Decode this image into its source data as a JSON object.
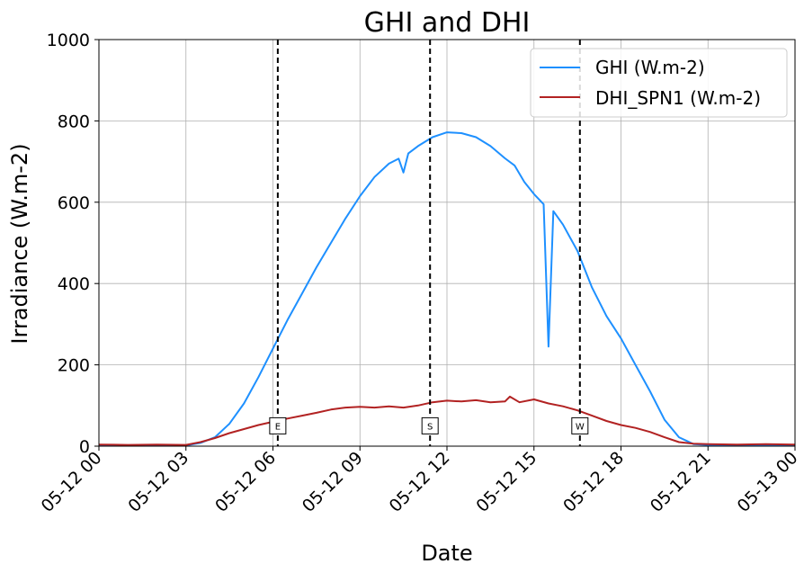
{
  "chart_data": {
    "type": "line",
    "title": "GHI and DHI",
    "xlabel": "Date",
    "ylabel": "Irradiance (W.m-2)",
    "x_ticks": [
      "05-12 00",
      "05-12 03",
      "05-12 06",
      "05-12 09",
      "05-12 12",
      "05-12 15",
      "05-12 18",
      "05-12 21",
      "05-13 00"
    ],
    "y_ticks": [
      "0",
      "200",
      "400",
      "600",
      "800",
      "1000"
    ],
    "xlim": [
      "2023-05-12 00:00",
      "2023-05-13 00:00"
    ],
    "ylim": [
      0,
      1000
    ],
    "grid": true,
    "legend": "top-right",
    "markers": [
      {
        "label": "E",
        "time": "05-12 06:10"
      },
      {
        "label": "S",
        "time": "05-12 11:25"
      },
      {
        "label": "W",
        "time": "05-12 16:35"
      }
    ],
    "series": [
      {
        "name": "GHI (W.m-2)",
        "color": "#1e90ff",
        "points": [
          [
            "05-12 00:00",
            2
          ],
          [
            "05-12 02:00",
            2
          ],
          [
            "05-12 03:00",
            2
          ],
          [
            "05-12 03:30",
            8
          ],
          [
            "05-12 04:00",
            22
          ],
          [
            "05-12 04:30",
            55
          ],
          [
            "05-12 05:00",
            105
          ],
          [
            "05-12 05:30",
            170
          ],
          [
            "05-12 06:00",
            240
          ],
          [
            "05-12 06:30",
            310
          ],
          [
            "05-12 07:00",
            375
          ],
          [
            "05-12 07:30",
            440
          ],
          [
            "05-12 08:00",
            500
          ],
          [
            "05-12 08:30",
            560
          ],
          [
            "05-12 09:00",
            615
          ],
          [
            "05-12 09:30",
            662
          ],
          [
            "05-12 10:00",
            695
          ],
          [
            "05-12 10:20",
            707
          ],
          [
            "05-12 10:30",
            673
          ],
          [
            "05-12 10:40",
            720
          ],
          [
            "05-12 11:00",
            738
          ],
          [
            "05-12 11:30",
            760
          ],
          [
            "05-12 12:00",
            772
          ],
          [
            "05-12 12:30",
            770
          ],
          [
            "05-12 13:00",
            760
          ],
          [
            "05-12 13:30",
            738
          ],
          [
            "05-12 14:00",
            708
          ],
          [
            "05-12 14:20",
            690
          ],
          [
            "05-12 14:40",
            650
          ],
          [
            "05-12 15:00",
            620
          ],
          [
            "05-12 15:20",
            595
          ],
          [
            "05-12 15:30",
            245
          ],
          [
            "05-12 15:40",
            578
          ],
          [
            "05-12 16:00",
            545
          ],
          [
            "05-12 16:30",
            480
          ],
          [
            "05-12 17:00",
            390
          ],
          [
            "05-12 17:30",
            320
          ],
          [
            "05-12 18:00",
            265
          ],
          [
            "05-12 18:30",
            200
          ],
          [
            "05-12 19:00",
            135
          ],
          [
            "05-12 19:30",
            65
          ],
          [
            "05-12 20:00",
            22
          ],
          [
            "05-12 20:30",
            5
          ],
          [
            "05-12 21:00",
            3
          ],
          [
            "05-12 22:00",
            3
          ],
          [
            "05-12 23:00",
            3
          ],
          [
            "05-13 00:00",
            2
          ]
        ]
      },
      {
        "name": "DHI_SPN1 (W.m-2)",
        "color": "#b22222",
        "points": [
          [
            "05-12 00:00",
            4
          ],
          [
            "05-12 01:00",
            3
          ],
          [
            "05-12 02:00",
            4
          ],
          [
            "05-12 03:00",
            3
          ],
          [
            "05-12 03:30",
            10
          ],
          [
            "05-12 04:00",
            20
          ],
          [
            "05-12 04:30",
            32
          ],
          [
            "05-12 05:00",
            42
          ],
          [
            "05-12 05:30",
            52
          ],
          [
            "05-12 06:00",
            60
          ],
          [
            "05-12 06:30",
            68
          ],
          [
            "05-12 07:00",
            75
          ],
          [
            "05-12 07:30",
            82
          ],
          [
            "05-12 08:00",
            90
          ],
          [
            "05-12 08:30",
            95
          ],
          [
            "05-12 09:00",
            97
          ],
          [
            "05-12 09:30",
            95
          ],
          [
            "05-12 10:00",
            98
          ],
          [
            "05-12 10:30",
            95
          ],
          [
            "05-12 11:00",
            100
          ],
          [
            "05-12 11:30",
            108
          ],
          [
            "05-12 12:00",
            112
          ],
          [
            "05-12 12:30",
            110
          ],
          [
            "05-12 13:00",
            113
          ],
          [
            "05-12 13:30",
            108
          ],
          [
            "05-12 14:00",
            110
          ],
          [
            "05-12 14:10",
            122
          ],
          [
            "05-12 14:30",
            108
          ],
          [
            "05-12 15:00",
            115
          ],
          [
            "05-12 15:30",
            105
          ],
          [
            "05-12 16:00",
            98
          ],
          [
            "05-12 16:30",
            88
          ],
          [
            "05-12 17:00",
            75
          ],
          [
            "05-12 17:30",
            62
          ],
          [
            "05-12 18:00",
            52
          ],
          [
            "05-12 18:30",
            45
          ],
          [
            "05-12 19:00",
            35
          ],
          [
            "05-12 19:30",
            22
          ],
          [
            "05-12 20:00",
            10
          ],
          [
            "05-12 20:30",
            6
          ],
          [
            "05-12 21:00",
            5
          ],
          [
            "05-12 22:00",
            4
          ],
          [
            "05-12 23:00",
            5
          ],
          [
            "05-13 00:00",
            4
          ]
        ]
      }
    ]
  }
}
